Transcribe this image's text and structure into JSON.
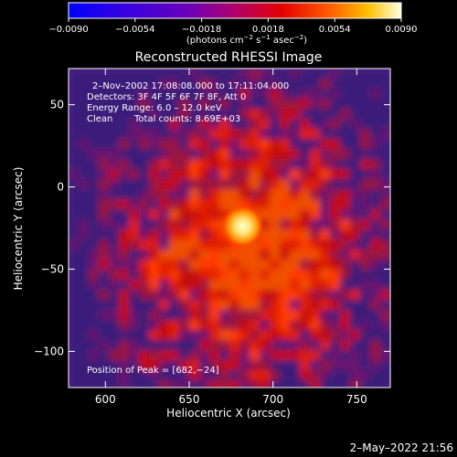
{
  "chart_data": {
    "type": "heatmap",
    "title": "Reconstructed RHESSI Image",
    "xlabel": "Heliocentric X (arcsec)",
    "ylabel": "Heliocentric Y (arcsec)",
    "xlim": [
      578,
      770
    ],
    "ylim": [
      -122,
      72
    ],
    "x_ticks": [
      600,
      650,
      700,
      750
    ],
    "y_ticks": [
      50,
      0,
      -50,
      -100
    ],
    "x_tick_labels": [
      "600",
      "650",
      "700",
      "750"
    ],
    "y_tick_labels": [
      "50",
      "0",
      "−50",
      "−100"
    ],
    "colorbar": {
      "range": [
        -0.009,
        0.009
      ],
      "ticks": [
        "−0.0090",
        "−0.0054",
        "−0.0018",
        "0.0018",
        "0.0054",
        "0.0090"
      ],
      "units_prefix": "(photons cm",
      "units_sup1": "−2",
      "units_mid1": " s",
      "units_sup2": "−1",
      "units_mid2": " asec",
      "units_sup3": "−2",
      "units_suffix": ")"
    },
    "peak": {
      "x": 682,
      "y": -24
    },
    "annotations": {
      "time_range": "2–Nov–2002 17:08:08.000 to 17:11:04.000",
      "detectors": "Detectors: 3F 4F 5F 6F 7F 8F, Att 0",
      "energy": "Energy Range: 6.0 – 12.0 keV",
      "clean_label": "Clean",
      "total_counts": "Total counts: 8.69E+03",
      "peak_text": "Position of Peak = [682,−24]"
    }
  },
  "footer": {
    "timestamp": "2–May–2022 21:56"
  },
  "colors": {
    "background": "#000000",
    "text": "#ffffff"
  }
}
